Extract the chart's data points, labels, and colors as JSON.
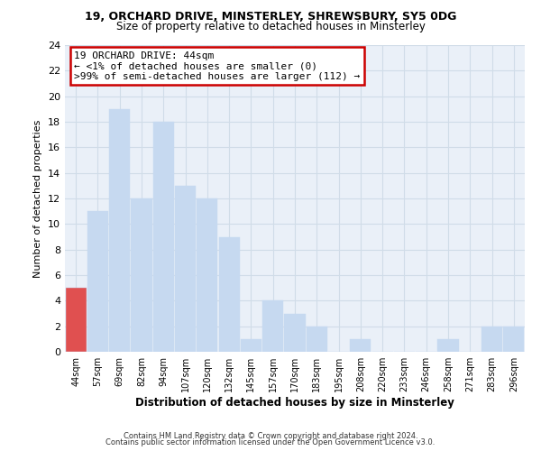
{
  "title1": "19, ORCHARD DRIVE, MINSTERLEY, SHREWSBURY, SY5 0DG",
  "title2": "Size of property relative to detached houses in Minsterley",
  "xlabel": "Distribution of detached houses by size in Minsterley",
  "ylabel": "Number of detached properties",
  "categories": [
    "44sqm",
    "57sqm",
    "69sqm",
    "82sqm",
    "94sqm",
    "107sqm",
    "120sqm",
    "132sqm",
    "145sqm",
    "157sqm",
    "170sqm",
    "183sqm",
    "195sqm",
    "208sqm",
    "220sqm",
    "233sqm",
    "246sqm",
    "258sqm",
    "271sqm",
    "283sqm",
    "296sqm"
  ],
  "values": [
    5,
    11,
    19,
    12,
    18,
    13,
    12,
    9,
    1,
    4,
    3,
    2,
    0,
    1,
    0,
    0,
    0,
    1,
    0,
    2,
    2
  ],
  "bar_color_normal": "#c6d9f0",
  "bar_color_highlight": "#e05050",
  "highlight_index": 0,
  "ylim": [
    0,
    24
  ],
  "yticks": [
    0,
    2,
    4,
    6,
    8,
    10,
    12,
    14,
    16,
    18,
    20,
    22,
    24
  ],
  "annotation_title": "19 ORCHARD DRIVE: 44sqm",
  "annotation_line1": "← <1% of detached houses are smaller (0)",
  "annotation_line2": ">99% of semi-detached houses are larger (112) →",
  "annotation_box_color": "#ffffff",
  "annotation_box_edge": "#cc0000",
  "footer1": "Contains HM Land Registry data © Crown copyright and database right 2024.",
  "footer2": "Contains public sector information licensed under the Open Government Licence v3.0.",
  "grid_color": "#d0dce8",
  "background_color": "#eaf0f8"
}
